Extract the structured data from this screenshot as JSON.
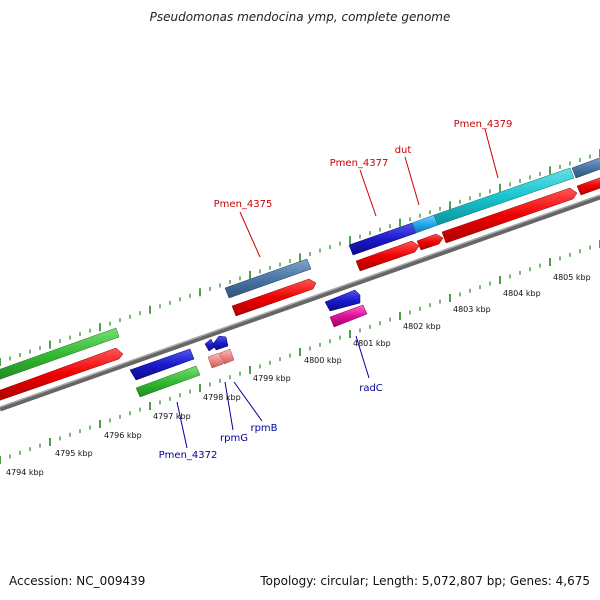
{
  "title": "Pseudomonas mendocina ymp, complete genome",
  "accession_text": "Accession: NC_009439",
  "summary_text": "Topology: circular; Length: 5,072,807 bp; Genes: 4,675",
  "kbp_labels": [
    "4794 kbp",
    "4795 kbp",
    "4796 kbp",
    "4797 kbp",
    "4798 kbp",
    "4799 kbp",
    "4800 kbp",
    "4801 kbp",
    "4802 kbp",
    "4803 kbp",
    "4804 kbp",
    "4805 kbp"
  ],
  "gene_labels": [
    {
      "name": "Pmen_4375",
      "color": "#cc0000"
    },
    {
      "name": "Pmen_4377",
      "color": "#cc0000"
    },
    {
      "name": "dut",
      "color": "#cc0000"
    },
    {
      "name": "Pmen_4379",
      "color": "#cc0000"
    },
    {
      "name": "Pmen_4372",
      "color": "#000099"
    },
    {
      "name": "rpmG",
      "color": "#000099"
    },
    {
      "name": "rpmB",
      "color": "#000099"
    },
    {
      "name": "radC",
      "color": "#000099"
    }
  ],
  "colors": {
    "red": "#ee0000",
    "green": "#33bb33",
    "blue": "#1a1acc",
    "steelblue": "#4a78a8",
    "cyan": "#17c6d0",
    "skyblue": "#22aaee",
    "magenta": "#dd1199",
    "pink": "#ee8888",
    "tick": "#228822",
    "backbone": "#888888"
  }
}
